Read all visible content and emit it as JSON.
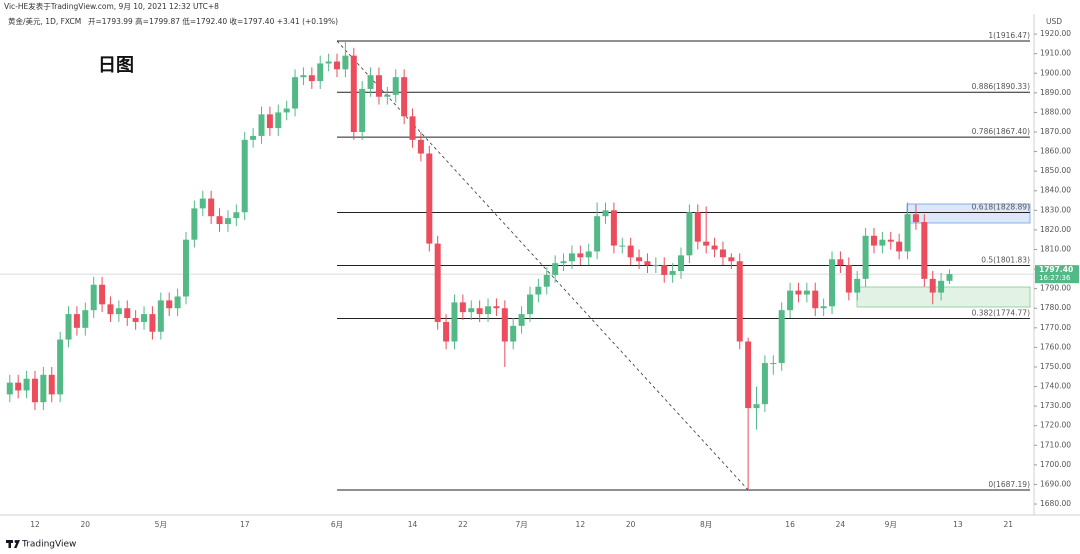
{
  "header": {
    "published": "Vic-HE发表于TradingView.com, 9月 10, 2021 12:32 UTC+8",
    "symbol": "黄金/美元, 1D, FXCM",
    "ohlc": "开=1793.99 高=1799.87 低=1792.40 收=1797.40 +3.41 (+0.19%)"
  },
  "footer": {
    "brand": "TradingView"
  },
  "chart_data": {
    "type": "candlestick",
    "title": "日图",
    "y_axis_label": "USD",
    "up_color": "#53b987",
    "down_color": "#eb4d5c",
    "grid": false,
    "ylim": [
      1674.4,
      1927.2
    ],
    "yticks": [
      {
        "value": 1680,
        "label": "1680.00"
      },
      {
        "value": 1690,
        "label": "1690.00"
      },
      {
        "value": 1700,
        "label": "1700.00"
      },
      {
        "value": 1710,
        "label": "1710.00"
      },
      {
        "value": 1720,
        "label": "1720.00"
      },
      {
        "value": 1730,
        "label": "1730.00"
      },
      {
        "value": 1740,
        "label": "1740.00"
      },
      {
        "value": 1750,
        "label": "1750.00"
      },
      {
        "value": 1760,
        "label": "1760.00"
      },
      {
        "value": 1770,
        "label": "1770.00"
      },
      {
        "value": 1780,
        "label": "1780.00"
      },
      {
        "value": 1790,
        "label": "1790.00"
      },
      {
        "value": 1800,
        "label": "1800.00"
      },
      {
        "value": 1810,
        "label": "1810.00"
      },
      {
        "value": 1820,
        "label": "1820.00"
      },
      {
        "value": 1830,
        "label": "1830.00"
      },
      {
        "value": 1840,
        "label": "1840.00"
      },
      {
        "value": 1850,
        "label": "1850.00"
      },
      {
        "value": 1860,
        "label": "1860.00"
      },
      {
        "value": 1870,
        "label": "1870.00"
      },
      {
        "value": 1880,
        "label": "1880.00"
      },
      {
        "value": 1890,
        "label": "1890.00"
      },
      {
        "value": 1900,
        "label": "1900.00"
      },
      {
        "value": 1910,
        "label": "1910.00"
      },
      {
        "value": 1920,
        "label": "1920.00"
      }
    ],
    "categories": [
      null,
      null,
      null,
      "12",
      null,
      null,
      null,
      null,
      null,
      "20",
      null,
      null,
      null,
      null,
      null,
      null,
      null,
      null,
      "5月",
      null,
      null,
      null,
      null,
      null,
      null,
      null,
      null,
      null,
      "17",
      null,
      null,
      null,
      null,
      null,
      null,
      null,
      null,
      null,
      null,
      "6月",
      null,
      null,
      null,
      null,
      null,
      null,
      null,
      null,
      "14",
      null,
      null,
      null,
      null,
      null,
      "22",
      null,
      null,
      null,
      null,
      null,
      null,
      "7月",
      null,
      null,
      null,
      null,
      null,
      null,
      "12",
      null,
      null,
      null,
      null,
      null,
      "20",
      null,
      null,
      null,
      null,
      null,
      null,
      null,
      null,
      "8月",
      null,
      null,
      null,
      null,
      null,
      null,
      null,
      null,
      null,
      "16",
      null,
      null,
      null,
      null,
      null,
      "24",
      null,
      null,
      null,
      null,
      null,
      "9月",
      null,
      null,
      null,
      null,
      null,
      null,
      null,
      "13",
      null,
      null,
      null,
      null,
      null,
      "21",
      null,
      null
    ],
    "open": [
      1736,
      1742,
      1738,
      1744,
      1732,
      1746,
      1736,
      1764,
      1777,
      1770,
      1779,
      1792,
      1782,
      1777,
      1780,
      1775,
      1773,
      1777,
      1768,
      1784,
      1780,
      1786,
      1815,
      1831,
      1836,
      1827,
      1823,
      1826,
      1829,
      1866,
      1868,
      1879,
      1872,
      1880,
      1882,
      1898,
      1899,
      1896,
      1905,
      1906,
      1902,
      1909,
      1870,
      1892,
      1899,
      1888,
      1889,
      1898,
      1878,
      1866,
      1859,
      1813,
      1773,
      1763,
      1783,
      1778,
      1780,
      1777,
      1781,
      1780,
      1763,
      1771,
      1777,
      1787,
      1791,
      1797,
      1803,
      1804,
      1808,
      1806,
      1809,
      1827,
      1830,
      1812,
      1812,
      1806,
      1804,
      1802,
      1802,
      1797,
      1799,
      1807,
      1829,
      1814,
      1812,
      1810,
      1806,
      1804,
      1763,
      1729,
      1731,
      1752,
      1752,
      1779,
      1789,
      1787,
      1789,
      1780,
      1781,
      1805,
      1802,
      1788,
      1795,
      1817,
      1812,
      1815,
      1814,
      1809,
      1828,
      1824,
      1795,
      1788,
      1793.99,
      null,
      null,
      null,
      null,
      null,
      null,
      null,
      null,
      null
    ],
    "high": [
      1746,
      1746,
      1748,
      1748,
      1750,
      1750,
      1768,
      1781,
      1781,
      1783,
      1796,
      1796,
      1786,
      1784,
      1784,
      1779,
      1781,
      1781,
      1788,
      1788,
      1790,
      1819,
      1835,
      1840,
      1840,
      1831,
      1830,
      1833,
      1870,
      1872,
      1883,
      1883,
      1884,
      1886,
      1902,
      1903,
      1903,
      1909,
      1910,
      1910,
      1916.47,
      1913,
      1896,
      1903,
      1903,
      1893,
      1902,
      1902,
      1882,
      1870,
      1863,
      1817,
      1777,
      1787,
      1787,
      1784,
      1784,
      1785,
      1785,
      1784,
      1775,
      1781,
      1791,
      1795,
      1801,
      1807,
      1808,
      1812,
      1812,
      1813,
      1834,
      1834,
      1834,
      1816,
      1816,
      1810,
      1808,
      1806,
      1806,
      1803,
      1811,
      1833,
      1833,
      1832,
      1816,
      1814,
      1808,
      1808,
      1765,
      1740,
      1756,
      1756,
      1783,
      1793,
      1793,
      1793,
      1793,
      1785,
      1809,
      1809,
      1806,
      1799,
      1821,
      1821,
      1819,
      1819,
      1818,
      1834,
      1833,
      1828,
      1799,
      1798,
      1799.87,
      null,
      null,
      null,
      null,
      null,
      null,
      null,
      null,
      null
    ],
    "low": [
      1732,
      1734,
      1734,
      1728,
      1728,
      1732,
      1732,
      1760,
      1766,
      1766,
      1775,
      1778,
      1773,
      1773,
      1771,
      1769,
      1769,
      1764,
      1764,
      1776,
      1776,
      1782,
      1811,
      1827,
      1823,
      1819,
      1819,
      1822,
      1825,
      1862,
      1864,
      1868,
      1868,
      1876,
      1878,
      1894,
      1892,
      1892,
      1901,
      1898,
      1898,
      1866,
      1866,
      1888,
      1884,
      1884,
      1885,
      1874,
      1862,
      1855,
      1809,
      1769,
      1759,
      1759,
      1774,
      1774,
      1773,
      1773,
      1776,
      1750,
      1759,
      1767,
      1773,
      1783,
      1787,
      1793,
      1799,
      1800,
      1802,
      1802,
      1805,
      1823,
      1808,
      1808,
      1802,
      1800,
      1798,
      1798,
      1793,
      1793,
      1795,
      1803,
      1810,
      1808,
      1806,
      1802,
      1800,
      1759,
      1687.19,
      1718,
      1727,
      1746,
      1748,
      1775,
      1783,
      1783,
      1776,
      1776,
      1777,
      1798,
      1784,
      1784,
      1791,
      1808,
      1808,
      1810,
      1805,
      1805,
      1820,
      1791,
      1782,
      1784,
      1792.4,
      null,
      null,
      null,
      null,
      null,
      null,
      null,
      null,
      null
    ],
    "close": [
      1742,
      1738,
      1744,
      1732,
      1746,
      1736,
      1764,
      1777,
      1770,
      1779,
      1792,
      1782,
      1777,
      1780,
      1775,
      1773,
      1777,
      1768,
      1784,
      1780,
      1786,
      1815,
      1831,
      1836,
      1827,
      1823,
      1826,
      1829,
      1866,
      1868,
      1879,
      1872,
      1880,
      1882,
      1898,
      1899,
      1896,
      1905,
      1906,
      1902,
      1909,
      1870,
      1892,
      1899,
      1888,
      1889,
      1898,
      1878,
      1866,
      1859,
      1813,
      1773,
      1763,
      1783,
      1778,
      1780,
      1777,
      1781,
      1780,
      1763,
      1771,
      1777,
      1787,
      1791,
      1797,
      1803,
      1804,
      1808,
      1806,
      1809,
      1827,
      1830,
      1812,
      1812,
      1806,
      1804,
      1802,
      1802,
      1797,
      1799,
      1807,
      1829,
      1814,
      1812,
      1810,
      1806,
      1804,
      1763,
      1729,
      1731,
      1752,
      1752,
      1779,
      1789,
      1787,
      1789,
      1780,
      1781,
      1805,
      1802,
      1788,
      1795,
      1817,
      1812,
      1815,
      1814,
      1809,
      1828,
      1824,
      1795,
      1788,
      1794,
      1797.4,
      null,
      null,
      null,
      null,
      null,
      null,
      null,
      null,
      null
    ],
    "last_price": {
      "value": 1797.4,
      "label": "1797.40",
      "countdown": "16:27:36"
    },
    "fib_levels": [
      {
        "value": 1916.47,
        "label": "1(1916.47)"
      },
      {
        "value": 1890.33,
        "label": "0.886(1890.33)"
      },
      {
        "value": 1867.4,
        "label": "0.786(1867.40)"
      },
      {
        "value": 1828.89,
        "label": "0.618(1828.89)"
      },
      {
        "value": 1801.83,
        "label": "0.5(1801.83)"
      },
      {
        "value": 1774.77,
        "label": "0.382(1774.77)"
      },
      {
        "value": 1687.19,
        "label": "0(1687.19)"
      }
    ]
  }
}
